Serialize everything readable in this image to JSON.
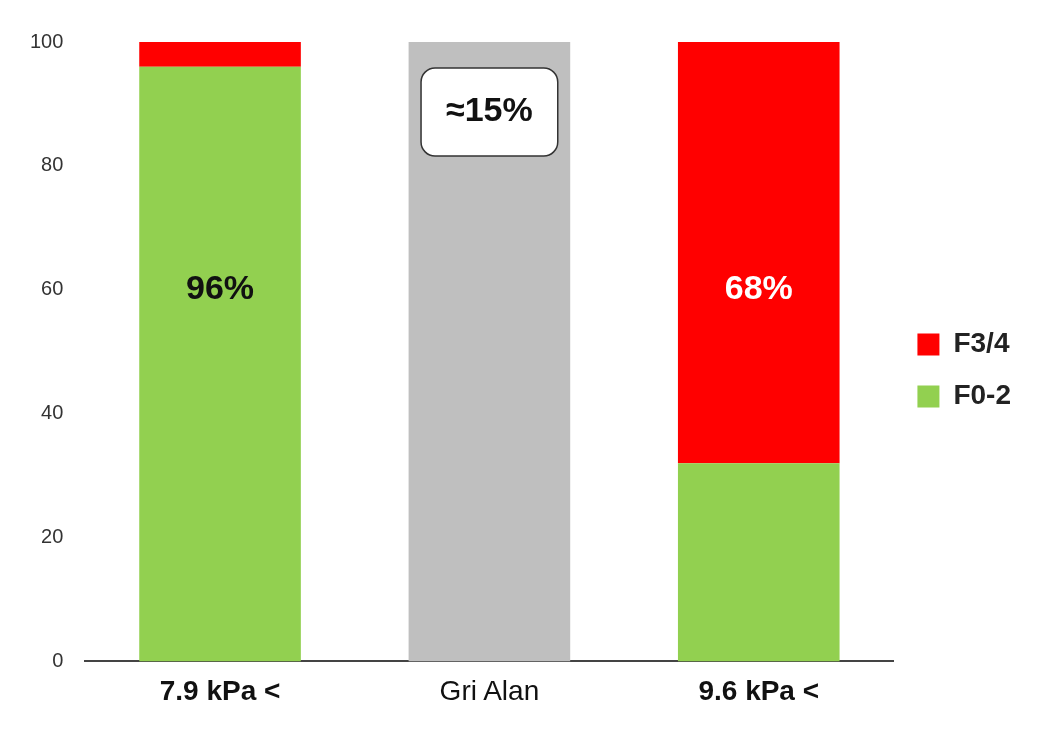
{
  "chart_data": {
    "type": "bar",
    "stacked": true,
    "categories": [
      "7.9 kPa <",
      "Gri Alan",
      "9.6 kPa <"
    ],
    "series": [
      {
        "name": "F0-2",
        "color": "#92d050",
        "values": [
          96,
          null,
          32
        ],
        "value_labels": [
          "96%",
          null,
          null
        ]
      },
      {
        "name": "F3/4",
        "color": "#ff0000",
        "values": [
          4,
          null,
          68
        ],
        "value_labels": [
          null,
          null,
          "68%"
        ]
      },
      {
        "color": "#bfbfbf",
        "values": [
          null,
          100,
          null
        ]
      }
    ],
    "ylim": [
      0,
      100
    ],
    "yticks": [
      0,
      20,
      40,
      60,
      80,
      100
    ],
    "grid": false,
    "legend": "right",
    "annotations": [
      "≈15%"
    ]
  }
}
